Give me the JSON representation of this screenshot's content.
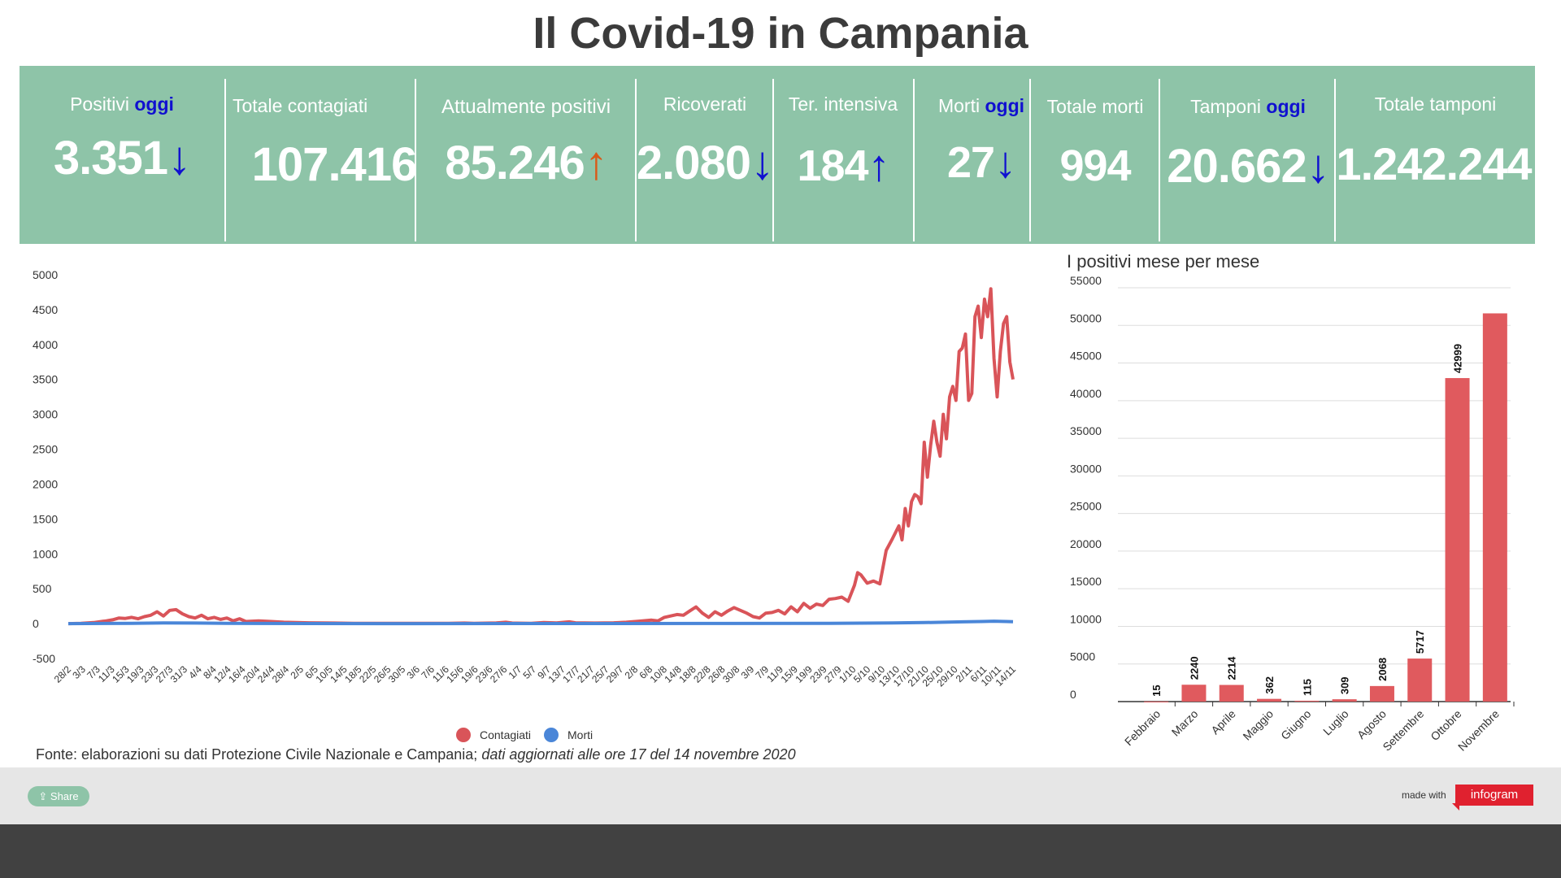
{
  "title": "Il Covid-19 in Campania",
  "stats": [
    {
      "label": "Positivi",
      "highlight": "oggi",
      "value": "3.351",
      "arrow": "↓",
      "arrow_color": "#1010d0"
    },
    {
      "label": "Totale contagiati",
      "highlight": "",
      "value": "107.416",
      "arrow": "",
      "arrow_color": ""
    },
    {
      "label": "Attualmente positivi",
      "highlight": "",
      "value": "85.246",
      "arrow": "↑",
      "arrow_color": "#d85a1a"
    },
    {
      "label": "Ricoverati",
      "highlight": "",
      "value": "2.080",
      "arrow": "↓",
      "arrow_color": "#1010d0"
    },
    {
      "label": "Ter. intensiva",
      "highlight": "",
      "value": "184",
      "arrow": "↑",
      "arrow_color": "#1010d0"
    },
    {
      "label": "Morti",
      "highlight": "oggi",
      "value": "27",
      "arrow": "↓",
      "arrow_color": "#1010d0"
    },
    {
      "label": "Totale morti",
      "highlight": "",
      "value": "994",
      "arrow": "",
      "arrow_color": ""
    },
    {
      "label": "Tamponi",
      "highlight": "oggi",
      "value": "20.662",
      "arrow": "↓",
      "arrow_color": "#1010d0"
    },
    {
      "label": "Totale tamponi",
      "highlight": "",
      "value": "1.242.244",
      "arrow": "",
      "arrow_color": ""
    }
  ],
  "colors": {
    "panel": "#8ec4a8",
    "contagiati": "#d95459",
    "morti": "#4a86d8",
    "bars": "#e05a5e",
    "oggi": "#1010d0"
  },
  "chart_data": [
    {
      "type": "line",
      "title": "",
      "ylim": [
        -500,
        5000
      ],
      "yticks": [
        5000,
        4500,
        4000,
        3500,
        3000,
        2500,
        2000,
        1500,
        1000,
        500,
        0,
        -500
      ],
      "x_tick_labels": [
        "28/2",
        "3/3",
        "7/3",
        "11/3",
        "15/3",
        "19/3",
        "23/3",
        "27/3",
        "31/3",
        "4/4",
        "8/4",
        "12/4",
        "16/4",
        "20/4",
        "24/4",
        "28/4",
        "2/5",
        "6/5",
        "10/5",
        "14/5",
        "18/5",
        "22/5",
        "26/5",
        "30/5",
        "3/6",
        "7/6",
        "11/6",
        "15/6",
        "19/6",
        "23/6",
        "27/6",
        "1/7",
        "5/7",
        "9/7",
        "13/7",
        "17/7",
        "21/7",
        "25/7",
        "29/7",
        "2/8",
        "6/8",
        "10/8",
        "14/8",
        "18/8",
        "22/8",
        "26/8",
        "30/8",
        "3/9",
        "7/9",
        "11/9",
        "15/9",
        "19/9",
        "23/9",
        "27/9",
        "1/10",
        "5/10",
        "9/10",
        "13/10",
        "17/10",
        "21/10",
        "25/10",
        "29/10",
        "2/11",
        "6/11",
        "10/11",
        "14/11"
      ],
      "legend": [
        "Contagiati",
        "Morti"
      ],
      "legend_position": "bottom",
      "series": [
        {
          "name": "Contagiati",
          "color": "#d95459",
          "points": [
            [
              0,
              0
            ],
            [
              4,
              5
            ],
            [
              8,
              15
            ],
            [
              12,
              40
            ],
            [
              14,
              55
            ],
            [
              16,
              80
            ],
            [
              18,
              75
            ],
            [
              20,
              90
            ],
            [
              22,
              70
            ],
            [
              24,
              100
            ],
            [
              26,
              120
            ],
            [
              28,
              170
            ],
            [
              30,
              110
            ],
            [
              32,
              190
            ],
            [
              34,
              200
            ],
            [
              36,
              140
            ],
            [
              38,
              100
            ],
            [
              40,
              80
            ],
            [
              42,
              120
            ],
            [
              44,
              70
            ],
            [
              46,
              90
            ],
            [
              48,
              60
            ],
            [
              50,
              80
            ],
            [
              52,
              40
            ],
            [
              54,
              70
            ],
            [
              56,
              30
            ],
            [
              60,
              40
            ],
            [
              64,
              30
            ],
            [
              68,
              20
            ],
            [
              72,
              15
            ],
            [
              76,
              12
            ],
            [
              80,
              10
            ],
            [
              84,
              8
            ],
            [
              90,
              5
            ],
            [
              100,
              4
            ],
            [
              110,
              3
            ],
            [
              120,
              3
            ],
            [
              125,
              8
            ],
            [
              128,
              5
            ],
            [
              135,
              10
            ],
            [
              138,
              20
            ],
            [
              140,
              8
            ],
            [
              146,
              5
            ],
            [
              150,
              15
            ],
            [
              154,
              10
            ],
            [
              158,
              25
            ],
            [
              160,
              12
            ],
            [
              166,
              8
            ],
            [
              172,
              12
            ],
            [
              176,
              20
            ],
            [
              180,
              35
            ],
            [
              184,
              50
            ],
            [
              186,
              40
            ],
            [
              188,
              90
            ],
            [
              190,
              110
            ],
            [
              192,
              130
            ],
            [
              194,
              120
            ],
            [
              196,
              180
            ],
            [
              198,
              240
            ],
            [
              200,
              150
            ],
            [
              202,
              90
            ],
            [
              204,
              170
            ],
            [
              206,
              120
            ],
            [
              208,
              180
            ],
            [
              210,
              230
            ],
            [
              212,
              190
            ],
            [
              214,
              150
            ],
            [
              216,
              100
            ],
            [
              218,
              80
            ],
            [
              220,
              150
            ],
            [
              222,
              160
            ],
            [
              224,
              190
            ],
            [
              226,
              140
            ],
            [
              228,
              240
            ],
            [
              230,
              170
            ],
            [
              232,
              290
            ],
            [
              234,
              220
            ],
            [
              236,
              280
            ],
            [
              238,
              260
            ],
            [
              240,
              350
            ],
            [
              242,
              360
            ],
            [
              244,
              380
            ],
            [
              246,
              320
            ],
            [
              248,
              550
            ],
            [
              249,
              730
            ],
            [
              250,
              700
            ],
            [
              252,
              580
            ],
            [
              254,
              610
            ],
            [
              256,
              570
            ],
            [
              258,
              1050
            ],
            [
              260,
              1220
            ],
            [
              262,
              1400
            ],
            [
              263,
              1200
            ],
            [
              264,
              1650
            ],
            [
              265,
              1400
            ],
            [
              266,
              1750
            ],
            [
              267,
              1850
            ],
            [
              268,
              1820
            ],
            [
              269,
              1720
            ],
            [
              270,
              2600
            ],
            [
              271,
              2100
            ],
            [
              272,
              2550
            ],
            [
              273,
              2900
            ],
            [
              274,
              2600
            ],
            [
              275,
              2400
            ],
            [
              276,
              3000
            ],
            [
              277,
              2650
            ],
            [
              278,
              3250
            ],
            [
              279,
              3400
            ],
            [
              280,
              3200
            ],
            [
              281,
              3900
            ],
            [
              282,
              3950
            ],
            [
              283,
              4150
            ],
            [
              284,
              3200
            ],
            [
              285,
              3300
            ],
            [
              286,
              4400
            ],
            [
              287,
              4550
            ],
            [
              288,
              4100
            ],
            [
              289,
              4650
            ],
            [
              290,
              4400
            ],
            [
              291,
              4800
            ],
            [
              292,
              3800
            ],
            [
              293,
              3250
            ],
            [
              294,
              3900
            ],
            [
              295,
              4300
            ],
            [
              296,
              4400
            ],
            [
              297,
              3750
            ],
            [
              298,
              3500
            ]
          ]
        },
        {
          "name": "Morti",
          "color": "#4a86d8",
          "points": [
            [
              0,
              0
            ],
            [
              20,
              5
            ],
            [
              30,
              10
            ],
            [
              40,
              8
            ],
            [
              50,
              4
            ],
            [
              60,
              2
            ],
            [
              100,
              0
            ],
            [
              200,
              2
            ],
            [
              240,
              5
            ],
            [
              260,
              10
            ],
            [
              270,
              15
            ],
            [
              276,
              20
            ],
            [
              282,
              25
            ],
            [
              288,
              30
            ],
            [
              292,
              35
            ],
            [
              296,
              30
            ],
            [
              298,
              27
            ]
          ]
        }
      ]
    },
    {
      "type": "bar",
      "title": "I positivi mese per mese",
      "ylim": [
        0,
        55000
      ],
      "yticks": [
        55000,
        50000,
        45000,
        40000,
        35000,
        30000,
        25000,
        20000,
        15000,
        10000,
        5000,
        0
      ],
      "categories": [
        "Febbraio",
        "Marzo",
        "Aprile",
        "Maggio",
        "Giugno",
        "Luglio",
        "Agosto",
        "Settembre",
        "Ottobre",
        "Novembre"
      ],
      "values": [
        15,
        2240,
        2214,
        362,
        115,
        309,
        2068,
        5717,
        42999,
        51600
      ],
      "data_labels": [
        "15",
        "2240",
        "2214",
        "362",
        "115",
        "309",
        "2068",
        "5717",
        "42999",
        ""
      ]
    }
  ],
  "footer": {
    "source_text": "Fonte: elaborazioni su dati Protezione Civile Nazionale e Campania; ",
    "source_italic": "dati aggiornati alle ore 17 del 14 novembre 2020",
    "share_label": "Share",
    "made_with": "made with",
    "brand": "infogram"
  }
}
